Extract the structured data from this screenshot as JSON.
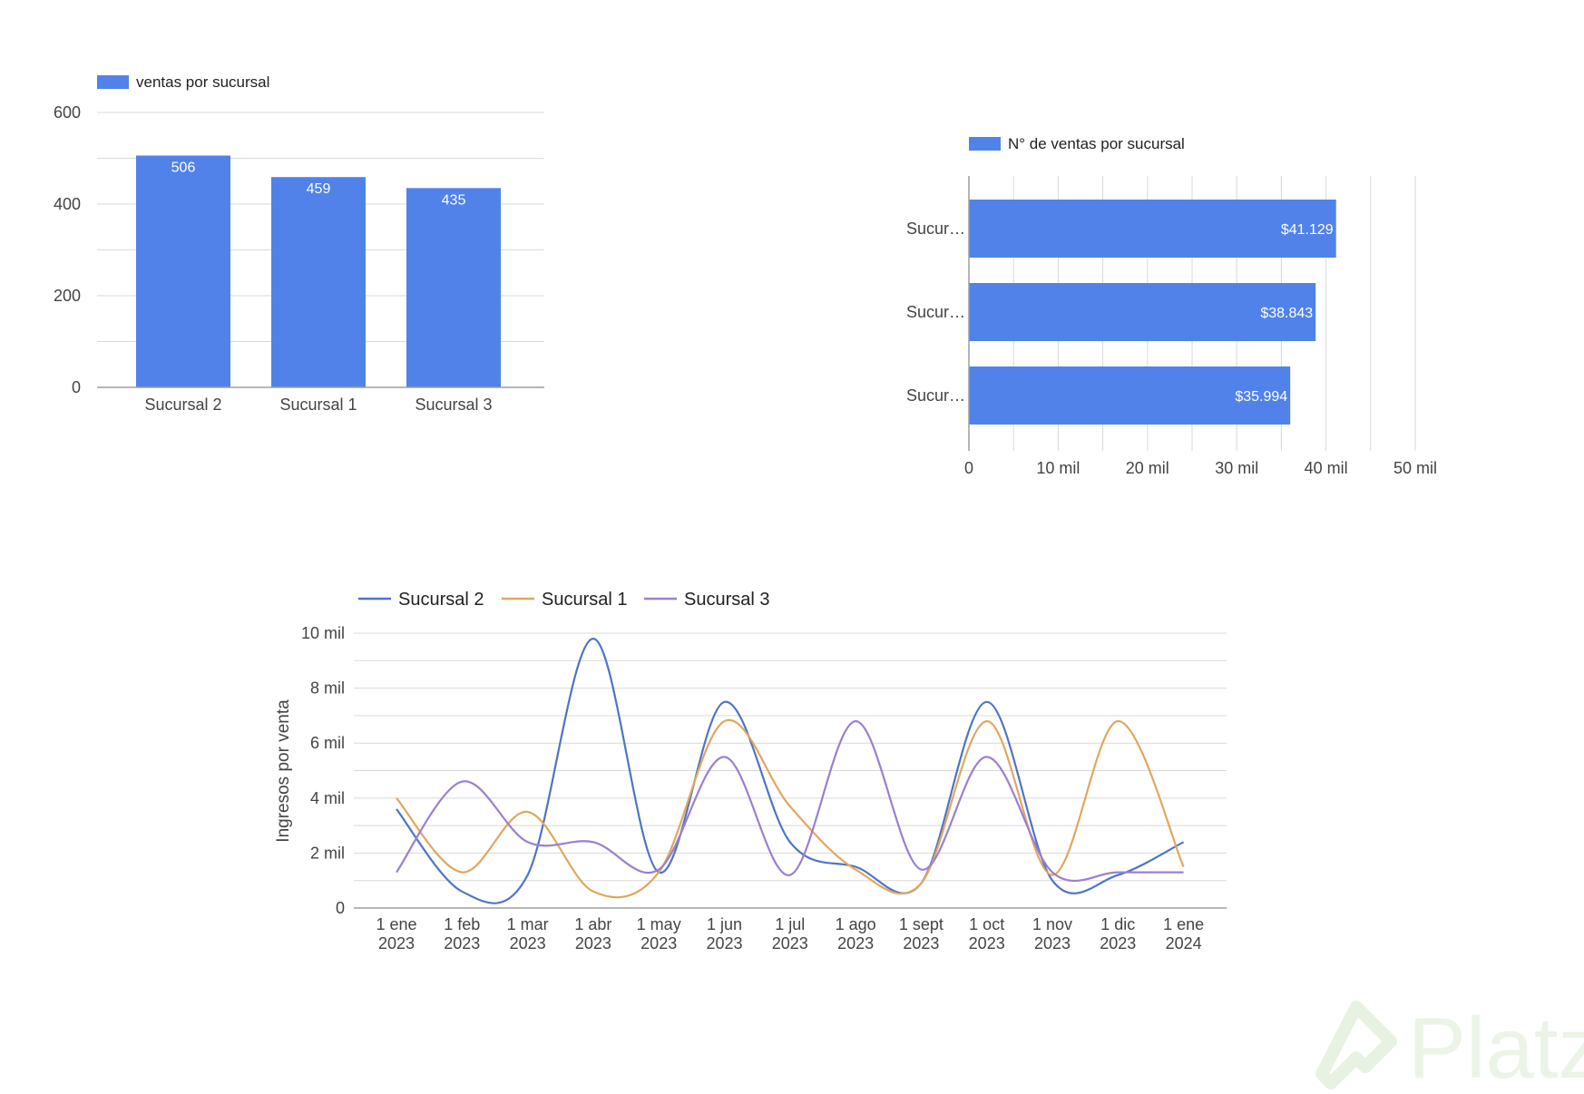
{
  "chart_data": [
    {
      "type": "bar",
      "orientation": "vertical",
      "legend": [
        "ventas por sucursal"
      ],
      "legend_position": "top-left",
      "categories": [
        "Sucursal 2",
        "Sucursal 1",
        "Sucursal 3"
      ],
      "values": [
        506,
        459,
        435
      ],
      "data_labels": [
        "506",
        "459",
        "435"
      ],
      "yticks": [
        "0",
        "200",
        "400",
        "600"
      ],
      "ylim": [
        0,
        600
      ],
      "grid": true,
      "color": "#5182ea"
    },
    {
      "type": "bar",
      "orientation": "horizontal",
      "legend": [
        "N° de ventas por sucursal"
      ],
      "legend_position": "top-left",
      "categories": [
        "Sucur…",
        "Sucur…",
        "Sucur…"
      ],
      "values": [
        41129,
        38843,
        35994
      ],
      "data_labels": [
        "$41.129",
        "$38.843",
        "$35.994"
      ],
      "xticks": [
        "0",
        "10 mil",
        "20 mil",
        "30 mil",
        "40 mil",
        "50 mil"
      ],
      "xlim": [
        0,
        50000
      ],
      "grid": true,
      "color": "#5182ea"
    },
    {
      "type": "line",
      "ylabel": "Ingresos por venta",
      "legend_position": "top-left",
      "x": [
        [
          "1 ene",
          "2023"
        ],
        [
          "1 feb",
          "2023"
        ],
        [
          "1 mar",
          "2023"
        ],
        [
          "1 abr",
          "2023"
        ],
        [
          "1 may",
          "2023"
        ],
        [
          "1 jun",
          "2023"
        ],
        [
          "1 jul",
          "2023"
        ],
        [
          "1 ago",
          "2023"
        ],
        [
          "1 sept",
          "2023"
        ],
        [
          "1 oct",
          "2023"
        ],
        [
          "1 nov",
          "2023"
        ],
        [
          "1 dic",
          "2023"
        ],
        [
          "1 ene",
          "2024"
        ]
      ],
      "yticks": [
        "0",
        "2 mil",
        "4 mil",
        "6 mil",
        "8 mil",
        "10 mil"
      ],
      "ylim": [
        0,
        10000
      ],
      "grid": true,
      "series": [
        {
          "name": "Sucursal 2",
          "color": "#4f74c6",
          "values": [
            3600,
            600,
            1200,
            9800,
            1300,
            7500,
            2400,
            1500,
            900,
            7500,
            1000,
            1200,
            2400
          ]
        },
        {
          "name": "Sucursal 1",
          "color": "#e0a75e",
          "values": [
            4000,
            1300,
            3500,
            600,
            1300,
            6800,
            3700,
            1400,
            900,
            6800,
            1200,
            6800,
            1500
          ]
        },
        {
          "name": "Sucursal 3",
          "color": "#9b7fd0",
          "values": [
            1300,
            4600,
            2400,
            2400,
            1400,
            5500,
            1200,
            6800,
            1400,
            5500,
            1300,
            1300,
            1300
          ]
        }
      ]
    }
  ],
  "watermark": "Platzi"
}
